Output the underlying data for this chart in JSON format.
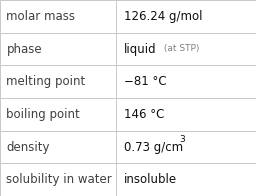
{
  "rows": [
    {
      "label": "molar mass",
      "value": "126.24 g/mol",
      "type": "plain"
    },
    {
      "label": "phase",
      "value": "liquid",
      "value_suffix": " (at STP)",
      "type": "phase"
    },
    {
      "label": "melting point",
      "value": "−81 °C",
      "type": "plain"
    },
    {
      "label": "boiling point",
      "value": "146 °C",
      "type": "plain"
    },
    {
      "label": "density",
      "value": "0.73 g/cm",
      "superscript": "3",
      "type": "super"
    },
    {
      "label": "solubility in water",
      "value": "insoluble",
      "type": "plain"
    }
  ],
  "bg_color": "#ffffff",
  "border_color": "#c8c8c8",
  "label_color": "#404040",
  "value_color": "#101010",
  "suffix_color": "#808080",
  "label_fontsize": 8.5,
  "value_fontsize": 8.5,
  "suffix_fontsize": 6.5,
  "col_split": 0.455
}
